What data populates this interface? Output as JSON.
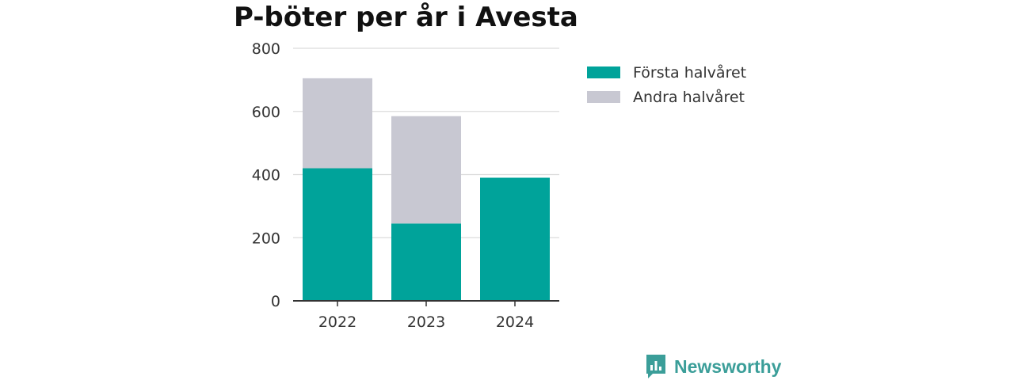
{
  "chart_data": {
    "type": "bar",
    "stacked": true,
    "title": "P-böter per år i Avesta",
    "categories": [
      "2022",
      "2023",
      "2024"
    ],
    "series": [
      {
        "name": "Första halvåret",
        "color": "#00a39a",
        "values": [
          420,
          245,
          390
        ]
      },
      {
        "name": "Andra halvåret",
        "color": "#c8c8d2",
        "values": [
          285,
          340,
          0
        ]
      }
    ],
    "ylim": [
      0,
      800
    ],
    "yticks": [
      0,
      200,
      400,
      600,
      800
    ],
    "grid": true,
    "legend_position": "right"
  },
  "branding": {
    "name": "Newsworthy",
    "icon": "newsworthy-logo-icon"
  }
}
